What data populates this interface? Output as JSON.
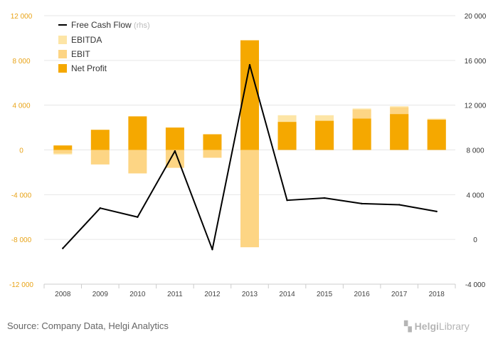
{
  "chart_data": {
    "type": "bar",
    "categories": [
      "2008",
      "2009",
      "2010",
      "2011",
      "2012",
      "2013",
      "2014",
      "2015",
      "2016",
      "2017",
      "2018"
    ],
    "series": [
      {
        "name": "EBITDA",
        "axis": "left",
        "values": [
          -400,
          null,
          null,
          null,
          null,
          null,
          3100,
          3100,
          3700,
          3900,
          2800
        ]
      },
      {
        "name": "EBIT",
        "axis": "left",
        "values": [
          -300,
          -1300,
          -2100,
          -1600,
          -700,
          -8700,
          2500,
          2600,
          3600,
          3800,
          2700
        ]
      },
      {
        "name": "Net Profit",
        "axis": "left",
        "values": [
          400,
          1800,
          3000,
          2000,
          1400,
          9800,
          2500,
          2600,
          2800,
          3200,
          2700
        ]
      },
      {
        "name": "Free Cash Flow",
        "suffix": "(rhs)",
        "axis": "right",
        "type": "line",
        "values": [
          -800,
          2800,
          2000,
          7900,
          -900,
          15600,
          3500,
          3700,
          3200,
          3100,
          2500
        ]
      }
    ],
    "y_left": {
      "min": -12000,
      "max": 12000,
      "ticks": [
        -12000,
        -8000,
        -4000,
        0,
        4000,
        8000,
        12000
      ],
      "tick_labels": [
        "-12 000",
        "-8 000",
        "-4 000",
        "0",
        "4 000",
        "8 000",
        "12 000"
      ]
    },
    "y_right": {
      "min": -4000,
      "max": 20000,
      "ticks": [
        -4000,
        0,
        4000,
        8000,
        12000,
        16000,
        20000
      ],
      "tick_labels": [
        "-4 000",
        "0",
        "4 000",
        "8 000",
        "12 000",
        "16 000",
        "20 000"
      ]
    },
    "legend_position": "top-left",
    "grid": true
  },
  "colors": {
    "ebitda": "#fde5a6",
    "ebit": "#fdd584",
    "net_profit": "#f5a800",
    "fcf": "#000000",
    "left_axis": "#e8a317",
    "right_axis": "#333333",
    "grid": "#e6e6e6"
  },
  "footer": {
    "source": "Source: Company Data, Helgi Analytics",
    "logo_main": "Helgi",
    "logo_sub": "Library"
  }
}
